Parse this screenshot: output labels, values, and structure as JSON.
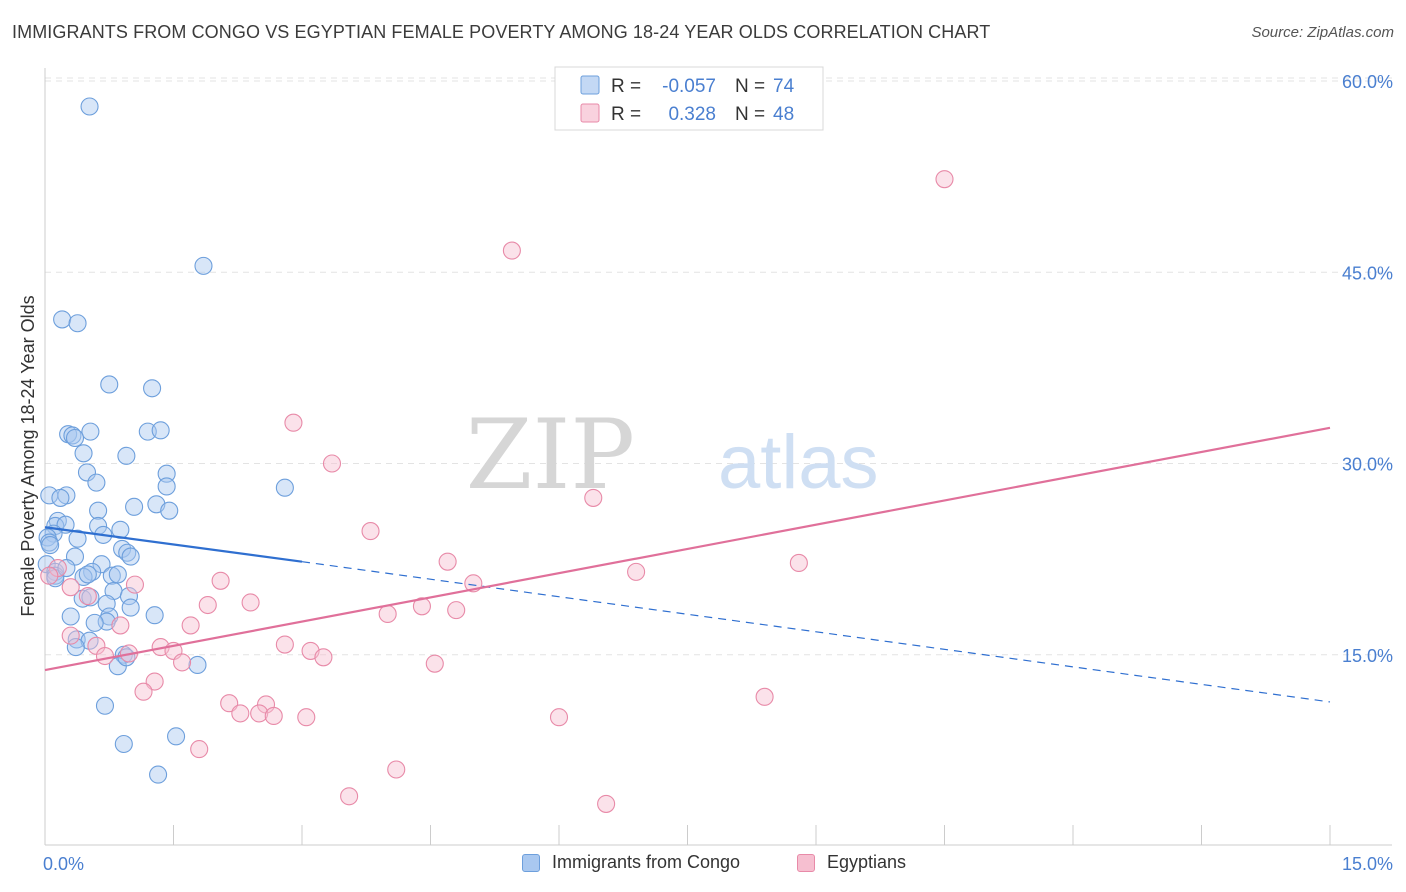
{
  "header": {
    "title": "IMMIGRANTS FROM CONGO VS EGYPTIAN FEMALE POVERTY AMONG 18-24 YEAR OLDS CORRELATION CHART",
    "source": "Source: ZipAtlas.com"
  },
  "colors": {
    "blue_fill": "#a9c8f0",
    "blue_stroke": "#6d9fdc",
    "blue_line": "#2f6fd0",
    "pink_fill": "#f6bfd0",
    "pink_stroke": "#e88aa8",
    "pink_line": "#e0709a",
    "axis_label": "#4a7fd0",
    "grid": "#e3e3e3"
  },
  "chart_data": {
    "type": "scatter",
    "title": "IMMIGRANTS FROM CONGO VS EGYPTIAN FEMALE POVERTY AMONG 18-24 YEAR OLDS CORRELATION CHART",
    "xlabel": "",
    "ylabel": "Female Poverty Among 18-24 Year Olds",
    "xlim": [
      0,
      15
    ],
    "ylim": [
      0,
      60
    ],
    "x_tick_labels": [
      "0.0%",
      "15.0%"
    ],
    "y_ticks": [
      15,
      30,
      45,
      60
    ],
    "y_tick_labels": [
      "15.0%",
      "30.0%",
      "45.0%",
      "60.0%"
    ],
    "grid": true,
    "watermark": {
      "part1": "ZIP",
      "part2": "atlas"
    },
    "legend_stats": [
      {
        "r_label": "R =",
        "r_value": "-0.057",
        "n_label": "N =",
        "n_value": "74"
      },
      {
        "r_label": "R =",
        "r_value": "0.328",
        "n_label": "N =",
        "n_value": "48"
      }
    ],
    "series": [
      {
        "name": "Immigrants from Congo",
        "color_key": "blue",
        "trend": {
          "x0": 0,
          "y0": 25.0,
          "x1": 3.0,
          "y1": 22.3,
          "dash_x1": 15.0,
          "dash_y1": 11.3
        },
        "points": [
          [
            0.52,
            58.0
          ],
          [
            1.85,
            45.5
          ],
          [
            0.2,
            41.3
          ],
          [
            0.38,
            41.0
          ],
          [
            0.75,
            36.2
          ],
          [
            1.25,
            35.9
          ],
          [
            0.27,
            32.3
          ],
          [
            0.32,
            32.2
          ],
          [
            0.53,
            32.5
          ],
          [
            0.35,
            32.0
          ],
          [
            1.2,
            32.5
          ],
          [
            1.35,
            32.6
          ],
          [
            0.95,
            30.6
          ],
          [
            0.45,
            30.8
          ],
          [
            1.42,
            29.2
          ],
          [
            0.49,
            29.3
          ],
          [
            0.6,
            28.5
          ],
          [
            1.42,
            28.2
          ],
          [
            2.8,
            28.1
          ],
          [
            0.05,
            27.5
          ],
          [
            0.25,
            27.5
          ],
          [
            0.18,
            27.3
          ],
          [
            1.3,
            26.8
          ],
          [
            1.04,
            26.6
          ],
          [
            1.45,
            26.3
          ],
          [
            0.62,
            26.3
          ],
          [
            0.15,
            25.5
          ],
          [
            0.12,
            25.1
          ],
          [
            0.24,
            25.2
          ],
          [
            0.62,
            25.1
          ],
          [
            0.88,
            24.8
          ],
          [
            0.1,
            24.5
          ],
          [
            0.03,
            24.2
          ],
          [
            0.05,
            23.8
          ],
          [
            0.06,
            23.6
          ],
          [
            0.38,
            24.1
          ],
          [
            0.68,
            24.4
          ],
          [
            0.9,
            23.3
          ],
          [
            0.96,
            23.0
          ],
          [
            1.0,
            22.7
          ],
          [
            0.35,
            22.7
          ],
          [
            0.02,
            22.1
          ],
          [
            0.66,
            22.1
          ],
          [
            0.12,
            21.5
          ],
          [
            0.55,
            21.5
          ],
          [
            0.78,
            21.2
          ],
          [
            0.45,
            21.1
          ],
          [
            0.12,
            21.2
          ],
          [
            0.5,
            21.3
          ],
          [
            0.85,
            21.3
          ],
          [
            0.8,
            20.0
          ],
          [
            0.44,
            19.4
          ],
          [
            0.72,
            19.0
          ],
          [
            0.98,
            19.6
          ],
          [
            0.53,
            19.5
          ],
          [
            0.3,
            18.0
          ],
          [
            0.75,
            18.0
          ],
          [
            1.0,
            18.7
          ],
          [
            1.28,
            18.1
          ],
          [
            0.72,
            17.6
          ],
          [
            0.58,
            17.5
          ],
          [
            0.37,
            16.2
          ],
          [
            0.52,
            16.1
          ],
          [
            0.12,
            21.0
          ],
          [
            0.92,
            15.0
          ],
          [
            0.85,
            14.1
          ],
          [
            1.78,
            14.2
          ],
          [
            0.7,
            11.0
          ],
          [
            0.92,
            8.0
          ],
          [
            1.53,
            8.6
          ],
          [
            1.32,
            5.6
          ],
          [
            0.36,
            15.6
          ],
          [
            0.95,
            14.8
          ],
          [
            0.25,
            21.8
          ]
        ]
      },
      {
        "name": "Egyptians",
        "color_key": "pink",
        "trend": {
          "x0": 0,
          "y0": 13.8,
          "x1": 15.0,
          "y1": 32.8
        },
        "points": [
          [
            10.5,
            52.3
          ],
          [
            5.45,
            46.7
          ],
          [
            2.9,
            33.2
          ],
          [
            3.35,
            30.0
          ],
          [
            6.4,
            27.3
          ],
          [
            3.8,
            24.7
          ],
          [
            8.8,
            22.2
          ],
          [
            4.7,
            22.3
          ],
          [
            6.9,
            21.5
          ],
          [
            0.15,
            21.8
          ],
          [
            0.05,
            21.2
          ],
          [
            1.05,
            20.5
          ],
          [
            5.0,
            20.6
          ],
          [
            2.05,
            20.8
          ],
          [
            0.3,
            20.3
          ],
          [
            1.9,
            18.9
          ],
          [
            2.4,
            19.1
          ],
          [
            4.4,
            18.8
          ],
          [
            4.8,
            18.5
          ],
          [
            4.0,
            18.2
          ],
          [
            0.5,
            19.6
          ],
          [
            0.88,
            17.3
          ],
          [
            1.7,
            17.3
          ],
          [
            0.3,
            16.5
          ],
          [
            0.6,
            15.7
          ],
          [
            0.98,
            15.1
          ],
          [
            0.7,
            14.9
          ],
          [
            1.35,
            15.6
          ],
          [
            1.5,
            15.3
          ],
          [
            1.6,
            14.4
          ],
          [
            2.8,
            15.8
          ],
          [
            3.1,
            15.3
          ],
          [
            3.25,
            14.8
          ],
          [
            4.55,
            14.3
          ],
          [
            1.28,
            12.9
          ],
          [
            1.15,
            12.1
          ],
          [
            8.4,
            11.7
          ],
          [
            2.15,
            11.2
          ],
          [
            2.58,
            11.1
          ],
          [
            2.28,
            10.4
          ],
          [
            2.5,
            10.4
          ],
          [
            2.67,
            10.2
          ],
          [
            3.05,
            10.1
          ],
          [
            6.0,
            10.1
          ],
          [
            1.8,
            7.6
          ],
          [
            4.1,
            6.0
          ],
          [
            3.55,
            3.9
          ],
          [
            6.55,
            3.3
          ]
        ]
      }
    ]
  }
}
